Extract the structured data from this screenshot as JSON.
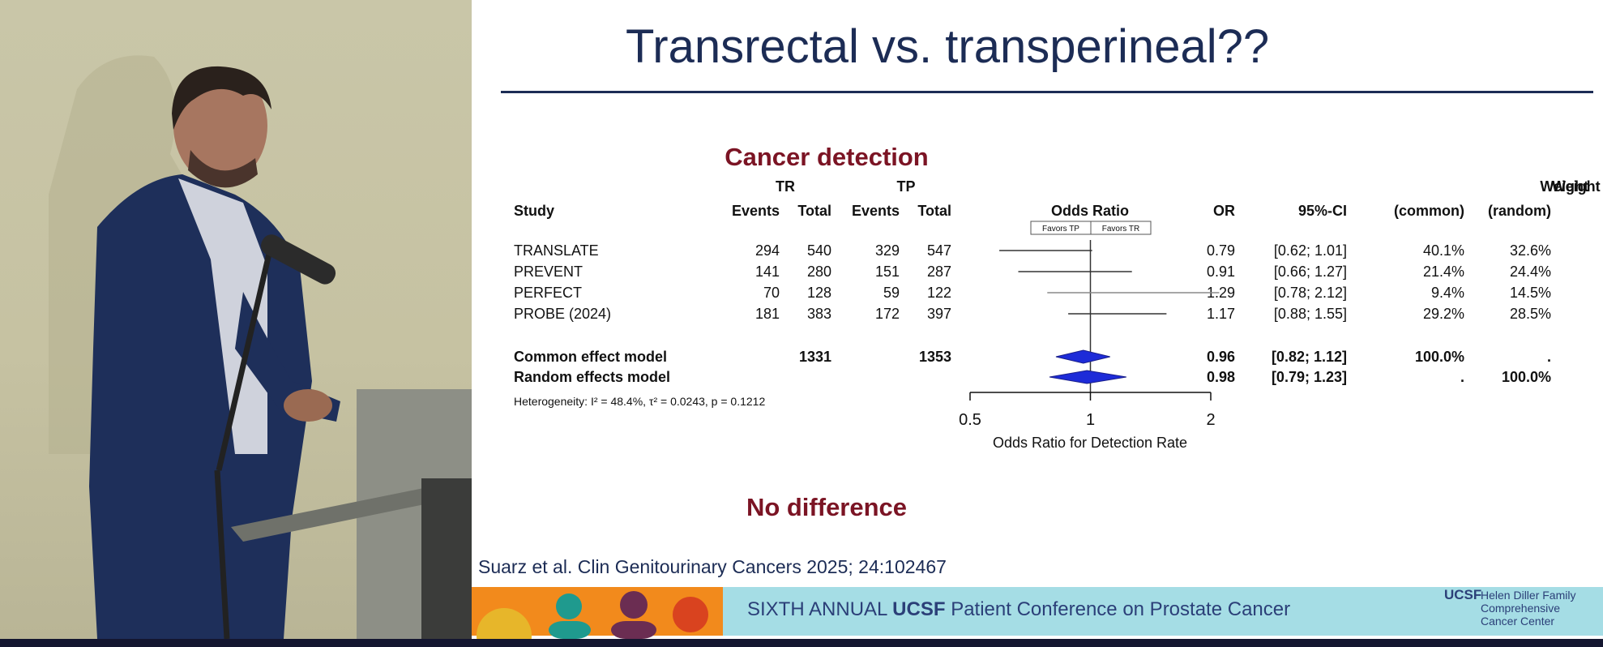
{
  "slide": {
    "title": "Transrectal vs. transperineal??",
    "panel_title": "Cancer detection",
    "conclusion": "No difference",
    "citation": "Suarz et al. Clin Genitourinary Cancers 2025; 24:102467"
  },
  "footer": {
    "text_prefix": "SIXTH ANNUAL",
    "text_brand": "UCSF",
    "text_suffix": "Patient Conference on Prostate Cancer",
    "logo": "UCSF",
    "center_name_1": "Helen Diller Family",
    "center_name_2": "Comprehensive",
    "center_name_3": "Cancer Center"
  },
  "colors": {
    "title": "#1c2c55",
    "accent_red": "#7b1424",
    "study_box": "#a9c8dc",
    "pooled_diamond": "#1d2bd8",
    "footer_band": "#a5dde5"
  },
  "chart_data": {
    "type": "forest",
    "title": "Odds Ratio",
    "xlabel": "Odds Ratio for Detection Rate",
    "x_scale": "log",
    "xlim": [
      0.5,
      2
    ],
    "xticks": [
      "0.5",
      "1",
      "2"
    ],
    "favors_left": "Favors TP",
    "favors_right": "Favors TR",
    "group_headers": {
      "tr": "TR",
      "tp": "TP"
    },
    "columns": {
      "study": "Study",
      "tr_events": "Events",
      "tr_total": "Total",
      "tp_events": "Events",
      "tp_total": "Total",
      "plot": "Odds Ratio",
      "or": "OR",
      "ci": "95%-CI",
      "weight_common_1": "Weight",
      "weight_common_2": "(common)",
      "weight_random_1": "Weight",
      "weight_random_2": "(random)"
    },
    "studies": [
      {
        "name": "TRANSLATE",
        "tr_events": "294",
        "tr_total": "540",
        "tp_events": "329",
        "tp_total": "547",
        "or": "0.79",
        "ci": "[0.62; 1.01]",
        "or_value": 0.79,
        "ci_low": 0.62,
        "ci_high": 1.01,
        "weight_common": "40.1%",
        "weight_random": "32.6%"
      },
      {
        "name": "PREVENT",
        "tr_events": "141",
        "tr_total": "280",
        "tp_events": "151",
        "tp_total": "287",
        "or": "0.91",
        "ci": "[0.66; 1.27]",
        "or_value": 0.91,
        "ci_low": 0.66,
        "ci_high": 1.27,
        "weight_common": "21.4%",
        "weight_random": "24.4%"
      },
      {
        "name": "PERFECT",
        "tr_events": "70",
        "tr_total": "128",
        "tp_events": "59",
        "tp_total": "122",
        "or": "1.29",
        "ci": "[0.78; 2.12]",
        "or_value": 1.29,
        "ci_low": 0.78,
        "ci_high": 2.12,
        "weight_common": "9.4%",
        "weight_random": "14.5%"
      },
      {
        "name": "PROBE (2024)",
        "tr_events": "181",
        "tr_total": "383",
        "tp_events": "172",
        "tp_total": "397",
        "or": "1.17",
        "ci": "[0.88; 1.55]",
        "or_value": 1.17,
        "ci_low": 0.88,
        "ci_high": 1.55,
        "weight_common": "29.2%",
        "weight_random": "28.5%"
      }
    ],
    "pooled": [
      {
        "name": "Common effect model",
        "tr_total": "1331",
        "tp_total": "1353",
        "or": "0.96",
        "ci": "[0.82; 1.12]",
        "or_value": 0.96,
        "ci_low": 0.82,
        "ci_high": 1.12,
        "weight_common": "100.0%",
        "weight_random": "."
      },
      {
        "name": "Random effects model",
        "or": "0.98",
        "ci": "[0.79; 1.23]",
        "or_value": 0.98,
        "ci_low": 0.79,
        "ci_high": 1.23,
        "weight_common": ".",
        "weight_random": "100.0%"
      }
    ],
    "heterogeneity": "Heterogeneity: I² = 48.4%, τ² = 0.0243, p = 0.1212"
  }
}
